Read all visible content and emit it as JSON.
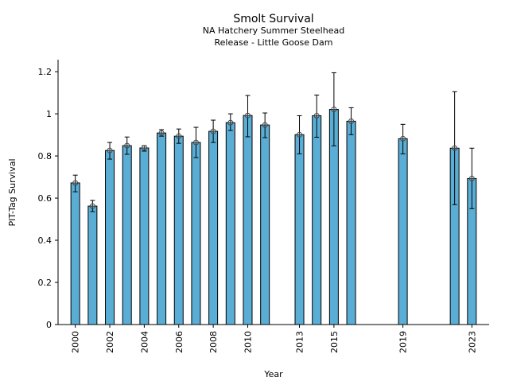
{
  "chart_data": {
    "type": "bar",
    "title": "Smolt Survival",
    "subtitle_lines": [
      "NA Hatchery Summer Steelhead",
      "Release - Little Goose Dam"
    ],
    "xlabel": "Year",
    "ylabel": "PIT-Tag Survival",
    "xlim": [
      1999,
      2024
    ],
    "ylim": [
      0,
      1.257
    ],
    "xticks": [
      2000,
      2002,
      2004,
      2006,
      2008,
      2010,
      2013,
      2015,
      2019,
      2023
    ],
    "yticks": [
      0,
      0.2,
      0.4,
      0.6,
      0.8,
      1,
      1.2
    ],
    "ytick_labels": [
      "0",
      "0.2",
      "0.4",
      "0.6",
      "0.8",
      "1",
      "1.2"
    ],
    "bar_color": "#5aaed6",
    "grid": false,
    "points": [
      {
        "year": 2000,
        "value": 0.672,
        "lower": 0.63,
        "upper": 0.709
      },
      {
        "year": 2001,
        "value": 0.562,
        "lower": 0.536,
        "upper": 0.589
      },
      {
        "year": 2002,
        "value": 0.826,
        "lower": 0.785,
        "upper": 0.864
      },
      {
        "year": 2003,
        "value": 0.849,
        "lower": 0.808,
        "upper": 0.89
      },
      {
        "year": 2004,
        "value": 0.838,
        "lower": 0.823,
        "upper": 0.849
      },
      {
        "year": 2005,
        "value": 0.909,
        "lower": 0.894,
        "upper": 0.925
      },
      {
        "year": 2006,
        "value": 0.894,
        "lower": 0.86,
        "upper": 0.928
      },
      {
        "year": 2007,
        "value": 0.864,
        "lower": 0.792,
        "upper": 0.936
      },
      {
        "year": 2008,
        "value": 0.917,
        "lower": 0.864,
        "upper": 0.97
      },
      {
        "year": 2009,
        "value": 0.958,
        "lower": 0.921,
        "upper": 1.0
      },
      {
        "year": 2010,
        "value": 0.992,
        "lower": 0.891,
        "upper": 1.087
      },
      {
        "year": 2011,
        "value": 0.947,
        "lower": 0.887,
        "upper": 1.004
      },
      {
        "year": 2013,
        "value": 0.901,
        "lower": 0.81,
        "upper": 0.991
      },
      {
        "year": 2014,
        "value": 0.991,
        "lower": 0.889,
        "upper": 1.089
      },
      {
        "year": 2015,
        "value": 1.021,
        "lower": 0.848,
        "upper": 1.195
      },
      {
        "year": 2016,
        "value": 0.965,
        "lower": 0.901,
        "upper": 1.029
      },
      {
        "year": 2019,
        "value": 0.882,
        "lower": 0.81,
        "upper": 0.95
      },
      {
        "year": 2022,
        "value": 0.837,
        "lower": 0.569,
        "upper": 1.105
      },
      {
        "year": 2023,
        "value": 0.693,
        "lower": 0.55,
        "upper": 0.837
      }
    ]
  }
}
